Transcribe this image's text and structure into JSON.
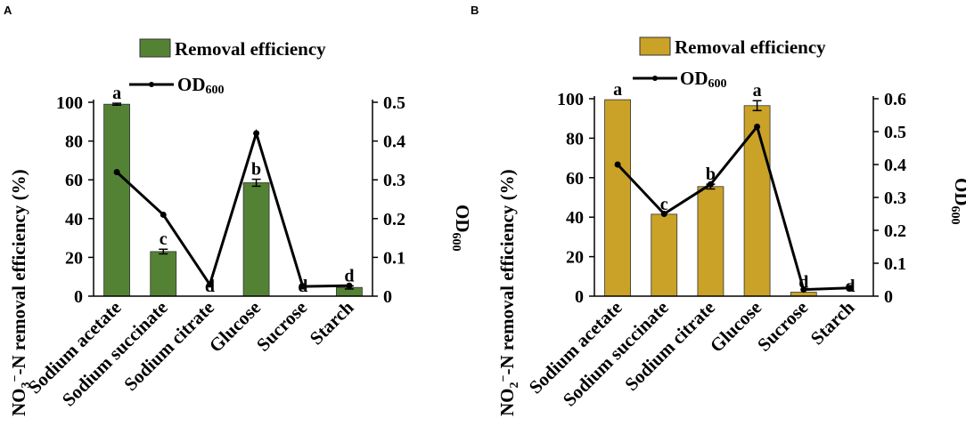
{
  "chart_data": [
    {
      "type": "bar",
      "panel_label": "A",
      "title": "",
      "categories": [
        "Sodium acetate",
        "Sodium succinate",
        "Sodium citrate",
        "Glucose",
        "Sucrose",
        "Starch"
      ],
      "series": [
        {
          "name": "Removal efficiency",
          "type": "bar",
          "axis": "left",
          "color": "#548235",
          "values": [
            99,
            23,
            0,
            58.5,
            0,
            4.5
          ],
          "errors": [
            0.5,
            1.2,
            0,
            1.8,
            0,
            0.8
          ],
          "labels": [
            "a",
            "c",
            "d",
            "b",
            "d",
            "d"
          ]
        },
        {
          "name": "OD",
          "name_subscript": "600",
          "type": "line",
          "axis": "right",
          "color": "#000000",
          "values": [
            0.32,
            0.21,
            0.03,
            0.42,
            0.025,
            0.027
          ]
        }
      ],
      "ylabel_left_main": "N removal efficiency (%)",
      "ylabel_left_species": "NO",
      "ylabel_left_sub": "3",
      "ylabel_left_charge": "−",
      "ylabel_left_dash": "-",
      "ylabel_right": "OD",
      "ylabel_right_sub": "600",
      "ylim_left": [
        0,
        100
      ],
      "ylim_right": [
        0,
        0.5
      ],
      "yticks_left": [
        "0",
        "20",
        "40",
        "60",
        "80",
        "100"
      ],
      "yticks_right": [
        "0",
        "0.1",
        "0.2",
        "0.3",
        "0.4",
        "0.5"
      ]
    },
    {
      "type": "bar",
      "panel_label": "B",
      "title": "",
      "categories": [
        "Sodium acetate",
        "Sodium succinate",
        "Sodium citrate",
        "Glucose",
        "Sucrose",
        "Starch"
      ],
      "series": [
        {
          "name": "Removal efficiency",
          "type": "bar",
          "axis": "left",
          "color": "#C9A227",
          "values": [
            99.5,
            41.5,
            55.5,
            96.5,
            2,
            0
          ],
          "errors": [
            0,
            0,
            1.2,
            2.5,
            0,
            0
          ],
          "labels": [
            "a",
            "c",
            "b",
            "a",
            "d",
            "d"
          ]
        },
        {
          "name": "OD",
          "name_subscript": "600",
          "type": "line",
          "axis": "right",
          "color": "#000000",
          "values": [
            0.4,
            0.25,
            0.34,
            0.515,
            0.02,
            0.025
          ]
        }
      ],
      "ylabel_left_main": "N removal efficiency (%)",
      "ylabel_left_species": "NO",
      "ylabel_left_sub": "2",
      "ylabel_left_charge": "−",
      "ylabel_left_dash": "-",
      "ylabel_right": "OD",
      "ylabel_right_sub": "600",
      "ylim_left": [
        0,
        100
      ],
      "ylim_right": [
        0,
        0.6
      ],
      "yticks_left": [
        "0",
        "20",
        "40",
        "60",
        "80",
        "100"
      ],
      "yticks_right": [
        "0",
        "0.1",
        "0.2",
        "0.3",
        "0.4",
        "0.5",
        "0.6"
      ]
    }
  ]
}
